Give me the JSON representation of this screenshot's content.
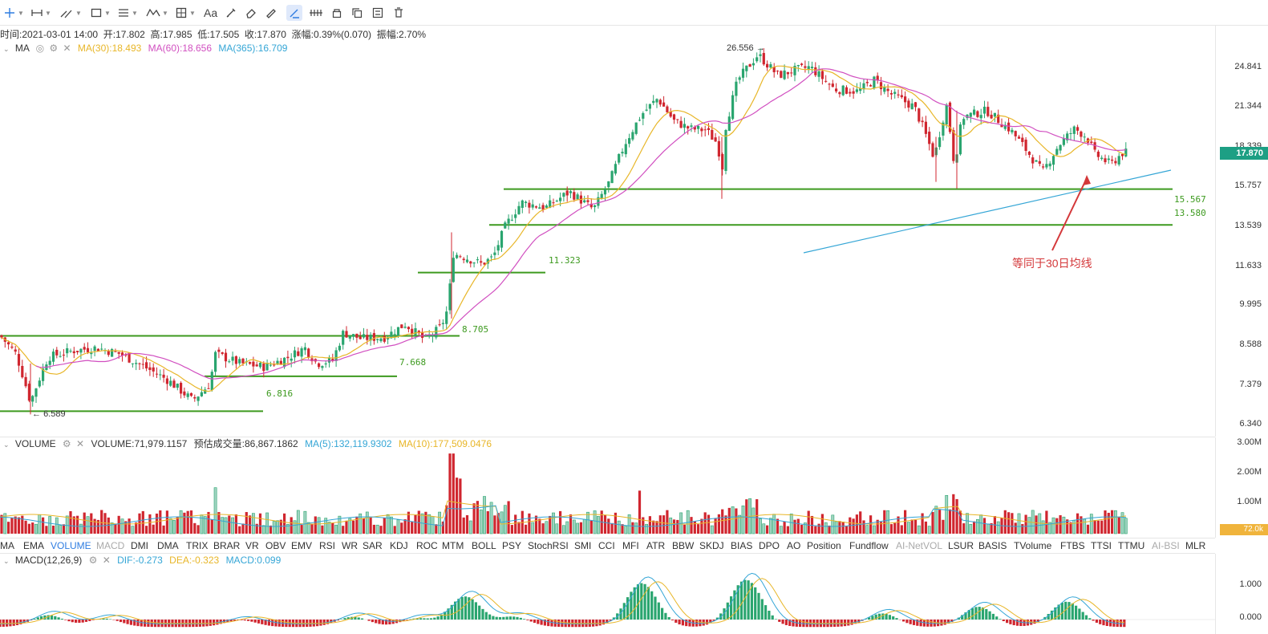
{
  "toolbar": {
    "tools": [
      {
        "name": "crosshair-icon",
        "dropdown": true
      },
      {
        "name": "horizontal-ray-icon",
        "dropdown": true
      },
      {
        "name": "trend-line-icon",
        "dropdown": true
      },
      {
        "name": "rectangle-icon",
        "dropdown": true
      },
      {
        "name": "fibonacci-icon",
        "dropdown": true
      },
      {
        "name": "wave-pattern-icon",
        "dropdown": true
      },
      {
        "name": "measure-icon",
        "dropdown": true
      },
      {
        "name": "text-tool-icon",
        "label": "Aa"
      },
      {
        "name": "brush-icon"
      },
      {
        "name": "eraser-icon"
      },
      {
        "name": "ruler-icon"
      },
      {
        "name": "magnet-icon",
        "active": true
      },
      {
        "name": "lock-drawings-icon"
      },
      {
        "name": "hide-drawings-icon"
      },
      {
        "name": "copy-icon"
      },
      {
        "name": "delete-drawings-icon"
      }
    ]
  },
  "ohlc": {
    "time_label": "时间:",
    "time": "2021-03-01 14:00",
    "open_label": "开:",
    "open": "17.802",
    "high_label": "高:",
    "high": "17.985",
    "low_label": "低:",
    "low": "17.505",
    "close_label": "收:",
    "close": "17.870",
    "change_label": "涨幅:",
    "change": "0.39%(0.070)",
    "amp_label": "振幅:",
    "amp": "2.70%"
  },
  "ma_legend": {
    "name": "MA",
    "ma30": "MA(30):18.493",
    "ma60": "MA(60):18.656",
    "ma365": "MA(365):16.709"
  },
  "volume_legend": {
    "name": "VOLUME",
    "volume": "VOLUME:71,979.1157",
    "est": "预估成交量:86,867.1862",
    "ma5": "MA(5):132,119.9302",
    "ma10": "MA(10):177,509.0476"
  },
  "macd_legend": {
    "name": "MACD(12,26,9)",
    "dif": "DIF:-0.273",
    "dea": "DEA:-0.323",
    "macd": "MACD:0.099"
  },
  "price_axis": [
    "24.841",
    "21.344",
    "18.339",
    "15.757",
    "13.539",
    "11.633",
    "9.995",
    "8.588",
    "7.379",
    "6.340"
  ],
  "current_price": "17.870",
  "volume_axis": [
    "3.00M",
    "2.00M",
    "1.00M"
  ],
  "current_volume": "72.0k",
  "macd_axis": [
    "1.000",
    "0.000"
  ],
  "price_marks": {
    "high": "26.556",
    "low": "6.589"
  },
  "levels": [
    "15.567",
    "13.580",
    "11.323",
    "8.705",
    "7.668",
    "6.816"
  ],
  "annotation": "等同于30日均线",
  "indicator_tabs": [
    "MA",
    "EMA",
    "VOLUME",
    "MACD",
    "DMI",
    "DMA",
    "TRIX",
    "BRAR",
    "VR",
    "OBV",
    "EMV",
    "RSI",
    "WR",
    "SAR",
    "KDJ",
    "ROC",
    "MTM",
    "BOLL",
    "PSY",
    "StochRSI",
    "SMI",
    "CCI",
    "MFI",
    "ATR",
    "BBW",
    "SKDJ",
    "BIAS",
    "DPO",
    "AO",
    "Position",
    "Fundflow",
    "AI-NetVOL",
    "LSUR",
    "BASIS",
    "TVolume",
    "FTBS",
    "TTSI",
    "TTMU",
    "AI-BSI",
    "MLR"
  ],
  "active_tab": "VOLUME",
  "disabled_tabs": [
    "MACD",
    "AI-NetVOL",
    "AI-BSI"
  ],
  "colors": {
    "up": "#2aa56f",
    "down": "#d0262f",
    "ma30": "#e8b628",
    "ma60": "#d14fc0",
    "ma365": "#35a6d6",
    "level": "#3d9a1f",
    "annotation": "#d4383a",
    "active_tab": "#2f7de1"
  }
}
